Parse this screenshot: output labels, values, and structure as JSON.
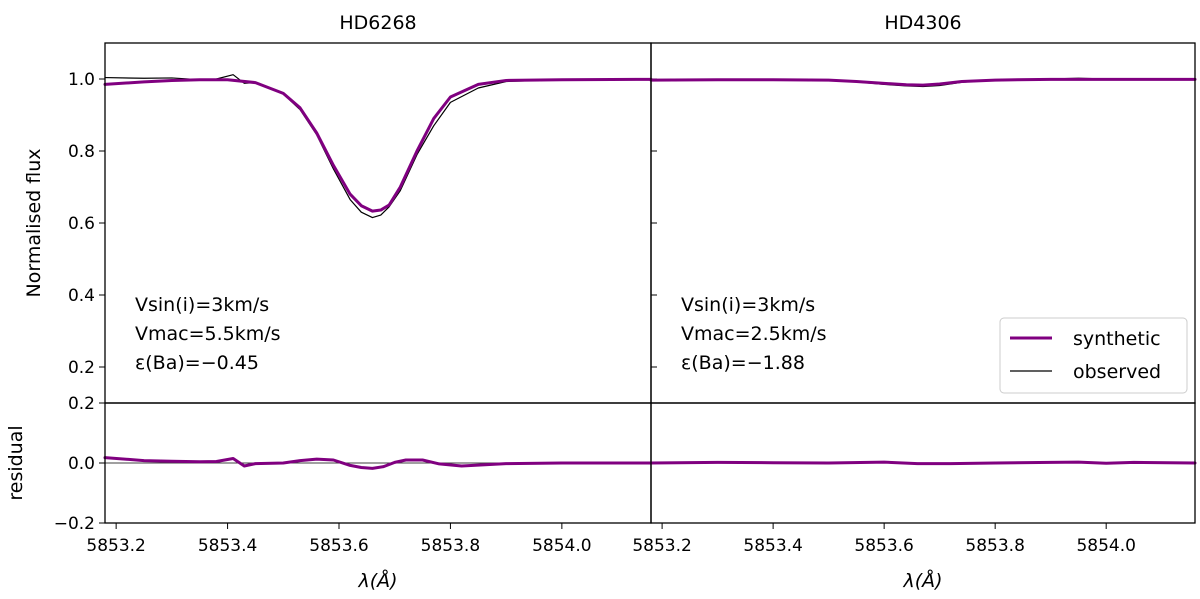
{
  "chart_data": [
    {
      "type": "line",
      "panel": "HD6268 main",
      "title": "HD6268",
      "xlabel": "",
      "ylabel": "Normalised flux",
      "xlim": [
        5853.18,
        5854.16
      ],
      "ylim": [
        0.1,
        1.1
      ],
      "yticks": [
        "0.2",
        "0.4",
        "0.6",
        "0.8",
        "1.0"
      ],
      "yticks_values": [
        0.2,
        0.4,
        0.6,
        0.8,
        1.0
      ],
      "annotations": [
        "Vsin(i)=3km/s",
        "Vmac=5.5km/s",
        "ε(Ba)=−0.45"
      ],
      "series": [
        {
          "name": "synthetic",
          "color": "#800080",
          "x": [
            5853.18,
            5853.25,
            5853.3,
            5853.35,
            5853.4,
            5853.45,
            5853.5,
            5853.53,
            5853.56,
            5853.59,
            5853.62,
            5853.64,
            5853.66,
            5853.675,
            5853.69,
            5853.71,
            5853.74,
            5853.77,
            5853.8,
            5853.85,
            5853.9,
            5854.0,
            5854.16
          ],
          "y": [
            0.985,
            0.992,
            0.996,
            0.998,
            0.998,
            0.99,
            0.96,
            0.92,
            0.85,
            0.76,
            0.68,
            0.648,
            0.633,
            0.636,
            0.65,
            0.7,
            0.8,
            0.89,
            0.95,
            0.985,
            0.996,
            0.998,
            0.999
          ]
        },
        {
          "name": "observed",
          "color": "#000000",
          "x": [
            5853.18,
            5853.25,
            5853.3,
            5853.35,
            5853.38,
            5853.41,
            5853.43,
            5853.45,
            5853.5,
            5853.53,
            5853.56,
            5853.59,
            5853.62,
            5853.64,
            5853.66,
            5853.675,
            5853.69,
            5853.71,
            5853.74,
            5853.77,
            5853.8,
            5853.85,
            5853.9,
            5854.0,
            5854.16
          ],
          "y": [
            1.004,
            1.002,
            1.003,
            0.998,
            1.0,
            1.012,
            0.988,
            0.99,
            0.958,
            0.915,
            0.845,
            0.75,
            0.665,
            0.63,
            0.615,
            0.622,
            0.645,
            0.69,
            0.79,
            0.87,
            0.935,
            0.975,
            0.993,
            0.998,
            0.999
          ]
        }
      ]
    },
    {
      "type": "line",
      "panel": "HD4306 main",
      "title": "HD4306",
      "xlabel": "",
      "ylabel": "",
      "xlim": [
        5853.18,
        5854.16
      ],
      "ylim": [
        0.1,
        1.1
      ],
      "annotations": [
        "Vsin(i)=3km/s",
        "Vmac=2.5km/s",
        "ε(Ba)=−1.88"
      ],
      "legend": {
        "placement": "lower-right",
        "entries": [
          "synthetic",
          "observed"
        ]
      },
      "series": [
        {
          "name": "synthetic",
          "color": "#800080",
          "x": [
            5853.18,
            5853.3,
            5853.4,
            5853.5,
            5853.55,
            5853.6,
            5853.64,
            5853.67,
            5853.7,
            5853.74,
            5853.8,
            5853.9,
            5854.0,
            5854.16
          ],
          "y": [
            0.997,
            0.998,
            0.998,
            0.997,
            0.993,
            0.988,
            0.984,
            0.983,
            0.986,
            0.993,
            0.997,
            0.999,
            0.999,
            0.999
          ]
        },
        {
          "name": "observed",
          "color": "#000000",
          "x": [
            5853.18,
            5853.3,
            5853.4,
            5853.5,
            5853.55,
            5853.6,
            5853.64,
            5853.67,
            5853.7,
            5853.74,
            5853.8,
            5853.9,
            5853.95,
            5854.0,
            5854.16
          ],
          "y": [
            0.998,
            0.999,
            0.999,
            0.998,
            0.992,
            0.985,
            0.981,
            0.979,
            0.982,
            0.991,
            0.997,
            1.0,
            1.002,
            1.0,
            0.999
          ]
        }
      ]
    },
    {
      "type": "line",
      "panel": "HD6268 residual",
      "xlabel": "λ(Å)",
      "ylabel": "residual",
      "xlim": [
        5853.18,
        5854.16
      ],
      "ylim": [
        -0.2,
        0.2
      ],
      "yticks": [
        "−0.2",
        "0.0",
        "0.2"
      ],
      "yticks_values": [
        -0.2,
        0.0,
        0.2
      ],
      "xticks": [
        "5853.2",
        "5853.4",
        "5853.6",
        "5853.8",
        "5854.0"
      ],
      "xticks_values": [
        5853.2,
        5853.4,
        5853.6,
        5853.8,
        5854.0
      ],
      "series": [
        {
          "name": "residual",
          "color": "#800080",
          "x": [
            5853.18,
            5853.25,
            5853.3,
            5853.35,
            5853.38,
            5853.41,
            5853.43,
            5853.45,
            5853.5,
            5853.53,
            5853.56,
            5853.59,
            5853.62,
            5853.64,
            5853.66,
            5853.68,
            5853.7,
            5853.72,
            5853.75,
            5853.78,
            5853.82,
            5853.9,
            5854.0,
            5854.16
          ],
          "y": [
            0.018,
            0.008,
            0.006,
            0.004,
            0.005,
            0.015,
            -0.01,
            -0.002,
            0.0,
            0.008,
            0.013,
            0.01,
            -0.008,
            -0.015,
            -0.018,
            -0.012,
            0.002,
            0.01,
            0.01,
            -0.003,
            -0.01,
            -0.002,
            0.0,
            0.0
          ]
        }
      ]
    },
    {
      "type": "line",
      "panel": "HD4306 residual",
      "xlabel": "λ(Å)",
      "ylabel": "",
      "xlim": [
        5853.18,
        5854.16
      ],
      "ylim": [
        -0.2,
        0.2
      ],
      "xticks": [
        "5853.2",
        "5853.4",
        "5853.6",
        "5853.8",
        "5854.0"
      ],
      "xticks_values": [
        5853.2,
        5853.4,
        5853.6,
        5853.8,
        5854.0
      ],
      "series": [
        {
          "name": "residual",
          "color": "#800080",
          "x": [
            5853.18,
            5853.3,
            5853.4,
            5853.5,
            5853.6,
            5853.66,
            5853.72,
            5853.8,
            5853.9,
            5853.95,
            5854.0,
            5854.05,
            5854.16
          ],
          "y": [
            0.0,
            0.002,
            0.001,
            0.0,
            0.003,
            -0.002,
            -0.002,
            0.0,
            0.002,
            0.003,
            -0.001,
            0.002,
            0.0
          ]
        }
      ]
    }
  ],
  "legend": {
    "entries": [
      {
        "label": "synthetic",
        "color": "#800080"
      },
      {
        "label": "observed",
        "color": "#000000"
      }
    ]
  }
}
